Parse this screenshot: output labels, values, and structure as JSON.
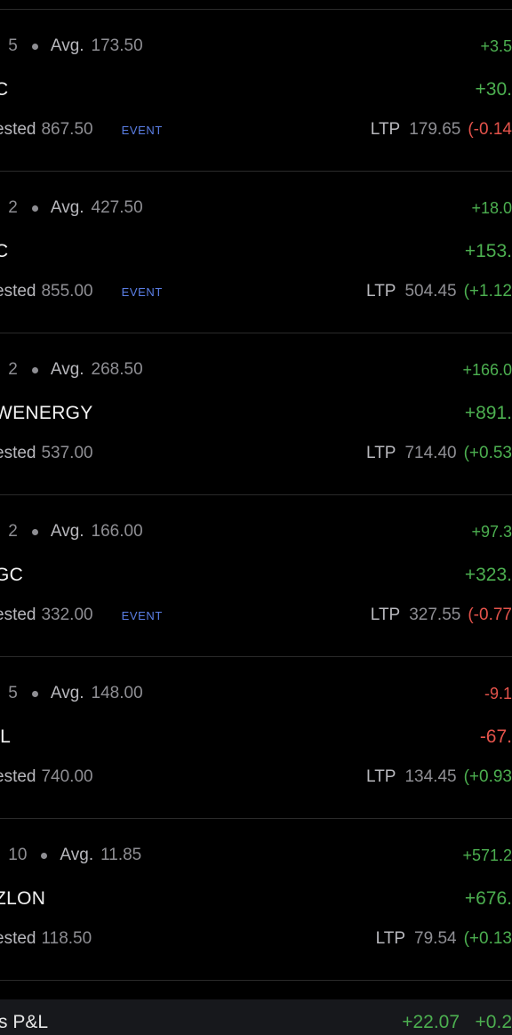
{
  "holdings": [
    {
      "qty_label": ".",
      "qty": "5",
      "avg_label": "Avg.",
      "avg": "173.50",
      "symbol": "C",
      "pnl_small": "+3.5",
      "pnl_small_sign": "pos",
      "pnl_big": "+30.",
      "pnl_big_sign": "pos",
      "invested_label": "ested",
      "invested": "867.50",
      "event": "EVENT",
      "ltp_label": "LTP",
      "ltp": "179.65",
      "ltp_change": "(-0.14",
      "ltp_change_sign": "neg"
    },
    {
      "qty_label": ".",
      "qty": "2",
      "avg_label": "Avg.",
      "avg": "427.50",
      "symbol": "C",
      "pnl_small": "+18.0",
      "pnl_small_sign": "pos",
      "pnl_big": "+153.",
      "pnl_big_sign": "pos",
      "invested_label": "ested",
      "invested": "855.00",
      "event": "EVENT",
      "ltp_label": "LTP",
      "ltp": "504.45",
      "ltp_change": "(+1.12",
      "ltp_change_sign": "pos"
    },
    {
      "qty_label": ".",
      "qty": "2",
      "avg_label": "Avg.",
      "avg": "268.50",
      "symbol": "WENERGY",
      "pnl_small": "+166.0",
      "pnl_small_sign": "pos",
      "pnl_big": "+891.",
      "pnl_big_sign": "pos",
      "invested_label": "ested",
      "invested": "537.00",
      "event": "",
      "ltp_label": "LTP",
      "ltp": "714.40",
      "ltp_change": "(+0.53",
      "ltp_change_sign": "pos"
    },
    {
      "qty_label": ".",
      "qty": "2",
      "avg_label": "Avg.",
      "avg": "166.00",
      "symbol": "GC",
      "pnl_small": "+97.3",
      "pnl_small_sign": "pos",
      "pnl_big": "+323.",
      "pnl_big_sign": "pos",
      "invested_label": "ested",
      "invested": "332.00",
      "event": "EVENT",
      "ltp_label": "LTP",
      "ltp": "327.55",
      "ltp_change": "(-0.77",
      "ltp_change_sign": "neg"
    },
    {
      "qty_label": ".",
      "qty": "5",
      "avg_label": "Avg.",
      "avg": "148.00",
      "symbol": "IL",
      "pnl_small": "-9.1",
      "pnl_small_sign": "neg",
      "pnl_big": "-67.",
      "pnl_big_sign": "neg",
      "invested_label": "ested",
      "invested": "740.00",
      "event": "",
      "ltp_label": "LTP",
      "ltp": "134.45",
      "ltp_change": "(+0.93",
      "ltp_change_sign": "pos"
    },
    {
      "qty_label": ".",
      "qty": "10",
      "avg_label": "Avg.",
      "avg": "11.85",
      "symbol": "ZLON",
      "pnl_small": "+571.2",
      "pnl_small_sign": "pos",
      "pnl_big": "+676.",
      "pnl_big_sign": "pos",
      "invested_label": "ested",
      "invested": "118.50",
      "event": "",
      "ltp_label": "LTP",
      "ltp": "79.54",
      "ltp_change": "(+0.13",
      "ltp_change_sign": "pos"
    }
  ],
  "day_pnl": {
    "label": "'s P&L",
    "value": "+22.07   +0.2",
    "sign": "pos"
  },
  "colors": {
    "positive": "#4caf50",
    "negative": "#e5534b",
    "event": "#5b7fe6",
    "background": "#000000",
    "divider": "#2a2a2a"
  }
}
